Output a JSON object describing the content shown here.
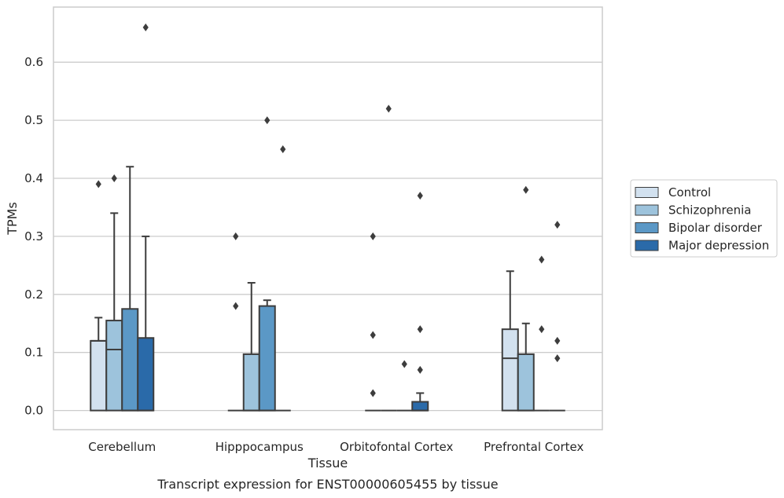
{
  "chart_data": {
    "type": "boxplot",
    "xlabel": "Tissue",
    "ylabel": "TPMs",
    "caption": "Transcript expression for ENST00000605455 by tissue",
    "ylim": [
      -0.033,
      0.695
    ],
    "yticks": [
      "0.0",
      "0.1",
      "0.2",
      "0.3",
      "0.4",
      "0.5",
      "0.6"
    ],
    "grid": true,
    "legend_position": "right",
    "categories": [
      "Cerebellum",
      "Hipppocampus",
      "Orbitofontal Cortex",
      "Prefrontal Cortex"
    ],
    "series": [
      {
        "name": "Control",
        "color": "#d2e1ef",
        "boxes": [
          {
            "q1": 0,
            "median": 0.12,
            "q3": 0.12,
            "whisker_low": 0,
            "whisker_high": 0.16,
            "outliers": [
              0.39
            ]
          },
          {
            "q1": 0,
            "median": 0,
            "q3": 0,
            "whisker_low": 0,
            "whisker_high": 0,
            "outliers": [
              0.18,
              0.3
            ]
          },
          {
            "q1": 0,
            "median": 0,
            "q3": 0,
            "whisker_low": 0,
            "whisker_high": 0,
            "outliers": [
              0.03,
              0.13,
              0.3
            ]
          },
          {
            "q1": 0,
            "median": 0.09,
            "q3": 0.14,
            "whisker_low": 0,
            "whisker_high": 0.24,
            "outliers": []
          }
        ]
      },
      {
        "name": "Schizophrenia",
        "color": "#9dc3dc",
        "boxes": [
          {
            "q1": 0,
            "median": 0.105,
            "q3": 0.155,
            "whisker_low": 0,
            "whisker_high": 0.34,
            "outliers": [
              0.4
            ]
          },
          {
            "q1": 0,
            "median": 0,
            "q3": 0.097,
            "whisker_low": 0,
            "whisker_high": 0.22,
            "outliers": []
          },
          {
            "q1": 0,
            "median": 0,
            "q3": 0,
            "whisker_low": 0,
            "whisker_high": 0,
            "outliers": [
              0.52
            ]
          },
          {
            "q1": 0,
            "median": 0,
            "q3": 0.097,
            "whisker_low": 0,
            "whisker_high": 0.15,
            "outliers": [
              0.38
            ]
          }
        ]
      },
      {
        "name": "Bipolar disorder",
        "color": "#5b98c6",
        "boxes": [
          {
            "q1": 0,
            "median": 0,
            "q3": 0.175,
            "whisker_low": 0,
            "whisker_high": 0.42,
            "outliers": []
          },
          {
            "q1": 0,
            "median": 0,
            "q3": 0.18,
            "whisker_low": 0,
            "whisker_high": 0.19,
            "outliers": [
              0.5
            ]
          },
          {
            "q1": 0,
            "median": 0,
            "q3": 0,
            "whisker_low": 0,
            "whisker_high": 0,
            "outliers": [
              0.08
            ]
          },
          {
            "q1": 0,
            "median": 0,
            "q3": 0,
            "whisker_low": 0,
            "whisker_high": 0,
            "outliers": [
              0.14,
              0.26
            ]
          }
        ]
      },
      {
        "name": "Major depression",
        "color": "#2a6aa9",
        "boxes": [
          {
            "q1": 0,
            "median": 0,
            "q3": 0.125,
            "whisker_low": 0,
            "whisker_high": 0.3,
            "outliers": [
              0.66
            ]
          },
          {
            "q1": 0,
            "median": 0,
            "q3": 0,
            "whisker_low": 0,
            "whisker_high": 0,
            "outliers": [
              0.45
            ]
          },
          {
            "q1": 0,
            "median": 0,
            "q3": 0.015,
            "whisker_low": 0,
            "whisker_high": 0.03,
            "outliers": [
              0.07,
              0.14,
              0.37
            ]
          },
          {
            "q1": 0,
            "median": 0,
            "q3": 0,
            "whisker_low": 0,
            "whisker_high": 0,
            "outliers": [
              0.09,
              0.12,
              0.32
            ]
          }
        ]
      }
    ]
  }
}
